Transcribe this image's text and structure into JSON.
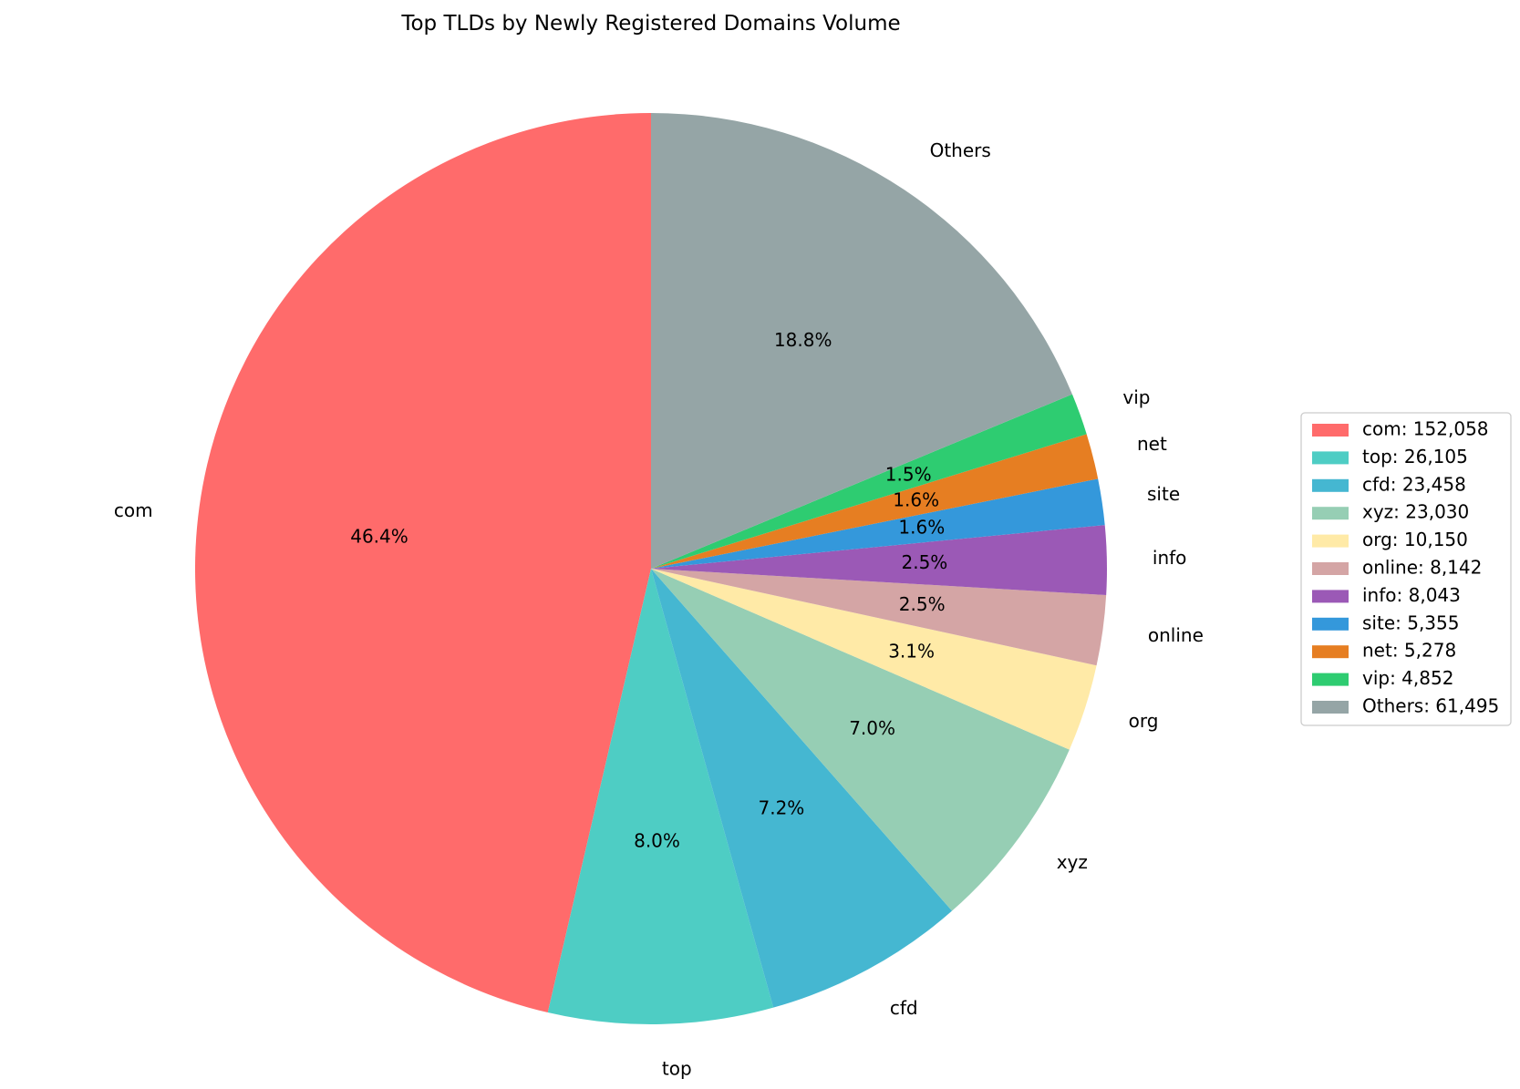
{
  "chart_data": {
    "type": "pie",
    "title": "Top TLDs by Newly Registered Domains Volume",
    "start_angle_deg": 90,
    "direction": "counterclockwise",
    "legend_position": "right",
    "slices": [
      {
        "label": "com",
        "value": 152058,
        "pct_label": "46.4%",
        "legend": "com: 152,058",
        "color": "#ff6b6b"
      },
      {
        "label": "top",
        "value": 26105,
        "pct_label": "8.0%",
        "legend": "top: 26,105",
        "color": "#4ecdc4"
      },
      {
        "label": "cfd",
        "value": 23458,
        "pct_label": "7.2%",
        "legend": "cfd: 23,458",
        "color": "#45b7d1"
      },
      {
        "label": "xyz",
        "value": 23030,
        "pct_label": "7.0%",
        "legend": "xyz: 23,030",
        "color": "#96ceb4"
      },
      {
        "label": "org",
        "value": 10150,
        "pct_label": "3.1%",
        "legend": "org: 10,150",
        "color": "#ffeaa7"
      },
      {
        "label": "online",
        "value": 8142,
        "pct_label": "2.5%",
        "legend": "online: 8,142",
        "color": "#d4a5a5"
      },
      {
        "label": "info",
        "value": 8043,
        "pct_label": "2.5%",
        "legend": "info: 8,043",
        "color": "#9b59b6"
      },
      {
        "label": "site",
        "value": 5355,
        "pct_label": "1.6%",
        "legend": "site: 5,355",
        "color": "#3498db"
      },
      {
        "label": "net",
        "value": 5278,
        "pct_label": "1.6%",
        "legend": "net: 5,278",
        "color": "#e67e22"
      },
      {
        "label": "vip",
        "value": 4852,
        "pct_label": "1.5%",
        "legend": "vip: 4,852",
        "color": "#2ecc71"
      },
      {
        "label": "Others",
        "value": 61495,
        "pct_label": "18.8%",
        "legend": "Others: 61,495",
        "color": "#95a5a6"
      }
    ]
  }
}
